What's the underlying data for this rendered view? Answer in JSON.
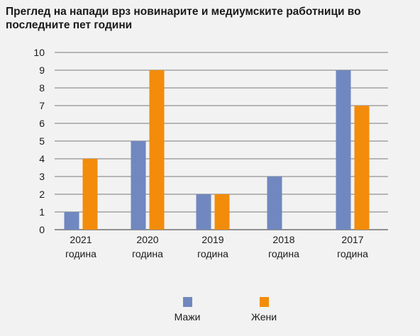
{
  "chart_data": {
    "type": "bar",
    "title": "Преглед на напади врз новинарите и медиумските работници во последните пет години",
    "categories": [
      [
        "2021",
        "година"
      ],
      [
        "2020",
        "година"
      ],
      [
        "2019",
        "година"
      ],
      [
        "2018",
        "година"
      ],
      [
        "2017",
        "година"
      ]
    ],
    "series": [
      {
        "name": "Мажи",
        "values": [
          1,
          5,
          2,
          3,
          9
        ],
        "color": "#7088bf"
      },
      {
        "name": "Жени",
        "values": [
          4,
          9,
          2,
          0,
          7
        ],
        "color": "#f28c0a"
      }
    ],
    "ylim": [
      0,
      10
    ],
    "yticks": [
      0,
      1,
      2,
      3,
      4,
      5,
      6,
      7,
      8,
      9,
      10
    ],
    "grid": true,
    "legend_position": "bottom"
  }
}
